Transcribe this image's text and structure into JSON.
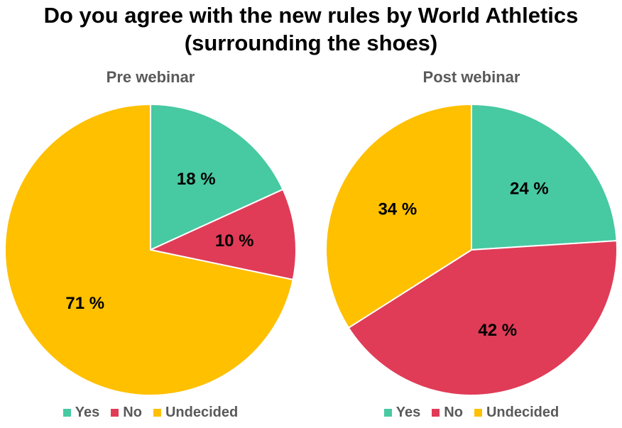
{
  "title": "Do you agree with the new rules by World Athletics (surrounding the shoes)",
  "colors": {
    "Yes": "#47c9a2",
    "No": "#e03c57",
    "Undecided": "#ffc000"
  },
  "chart_data": [
    {
      "type": "pie",
      "title": "Pre webinar",
      "categories": [
        "Yes",
        "No",
        "Undecided"
      ],
      "values": [
        18,
        10,
        71
      ],
      "labels": [
        "18 %",
        "10 %",
        "71 %"
      ],
      "legend": "bottom"
    },
    {
      "type": "pie",
      "title": "Post webinar",
      "categories": [
        "Yes",
        "No",
        "Undecided"
      ],
      "values": [
        24,
        42,
        34
      ],
      "labels": [
        "24 %",
        "42 %",
        "34 %"
      ],
      "legend": "bottom"
    }
  ]
}
